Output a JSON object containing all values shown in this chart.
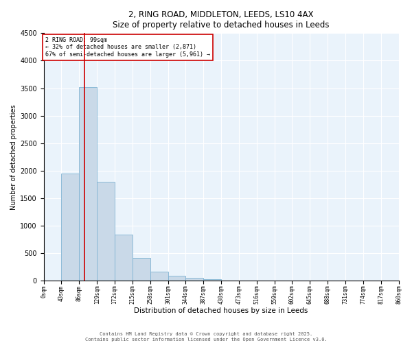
{
  "title_line1": "2, RING ROAD, MIDDLETON, LEEDS, LS10 4AX",
  "title_line2": "Size of property relative to detached houses in Leeds",
  "xlabel": "Distribution of detached houses by size in Leeds",
  "ylabel": "Number of detached properties",
  "annotation_line1": "2 RING ROAD: 99sqm",
  "annotation_line2": "← 32% of detached houses are smaller (2,871)",
  "annotation_line3": "67% of semi-detached houses are larger (5,961) →",
  "property_size": 99,
  "bar_bins": [
    0,
    43,
    86,
    129,
    172,
    215,
    258,
    301,
    344,
    387,
    430,
    473,
    516,
    559,
    602,
    645,
    688,
    731,
    774,
    817,
    860
  ],
  "bar_heights": [
    0,
    1950,
    3520,
    1800,
    840,
    420,
    160,
    90,
    50,
    30,
    10,
    5,
    2,
    1,
    0,
    0,
    0,
    0,
    0,
    0
  ],
  "bar_color": "#c9d9e8",
  "bar_edgecolor": "#7fb3d3",
  "line_color": "#cc0000",
  "annotation_box_color": "#cc0000",
  "ylim": [
    0,
    4500
  ],
  "yticks": [
    0,
    500,
    1000,
    1500,
    2000,
    2500,
    3000,
    3500,
    4000,
    4500
  ],
  "background_color": "#eaf3fb",
  "footer_line1": "Contains HM Land Registry data © Crown copyright and database right 2025.",
  "footer_line2": "Contains public sector information licensed under the Open Government Licence v3.0."
}
